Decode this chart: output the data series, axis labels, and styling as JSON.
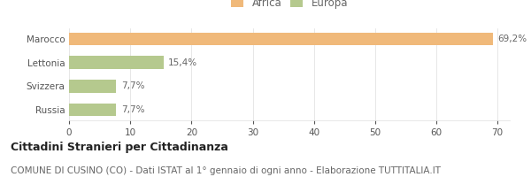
{
  "categories": [
    "Russia",
    "Svizzera",
    "Lettonia",
    "Marocco"
  ],
  "values": [
    7.7,
    7.7,
    15.4,
    69.2
  ],
  "labels": [
    "7,7%",
    "7,7%",
    "15,4%",
    "69,2%"
  ],
  "colors": [
    "#b5c98e",
    "#b5c98e",
    "#b5c98e",
    "#f0b97a"
  ],
  "legend_items": [
    {
      "label": "Africa",
      "color": "#f0b97a"
    },
    {
      "label": "Europa",
      "color": "#b5c98e"
    }
  ],
  "xlim": [
    0,
    72
  ],
  "xticks": [
    0,
    10,
    20,
    30,
    40,
    50,
    60,
    70
  ],
  "title_bold": "Cittadini Stranieri per Cittadinanza",
  "subtitle": "COMUNE DI CUSINO (CO) - Dati ISTAT al 1° gennaio di ogni anno - Elaborazione TUTTITALIA.IT",
  "background_color": "#ffffff",
  "bar_height": 0.55,
  "title_fontsize": 9,
  "subtitle_fontsize": 7.5,
  "label_fontsize": 7.5,
  "tick_fontsize": 7.5,
  "legend_fontsize": 8.5
}
